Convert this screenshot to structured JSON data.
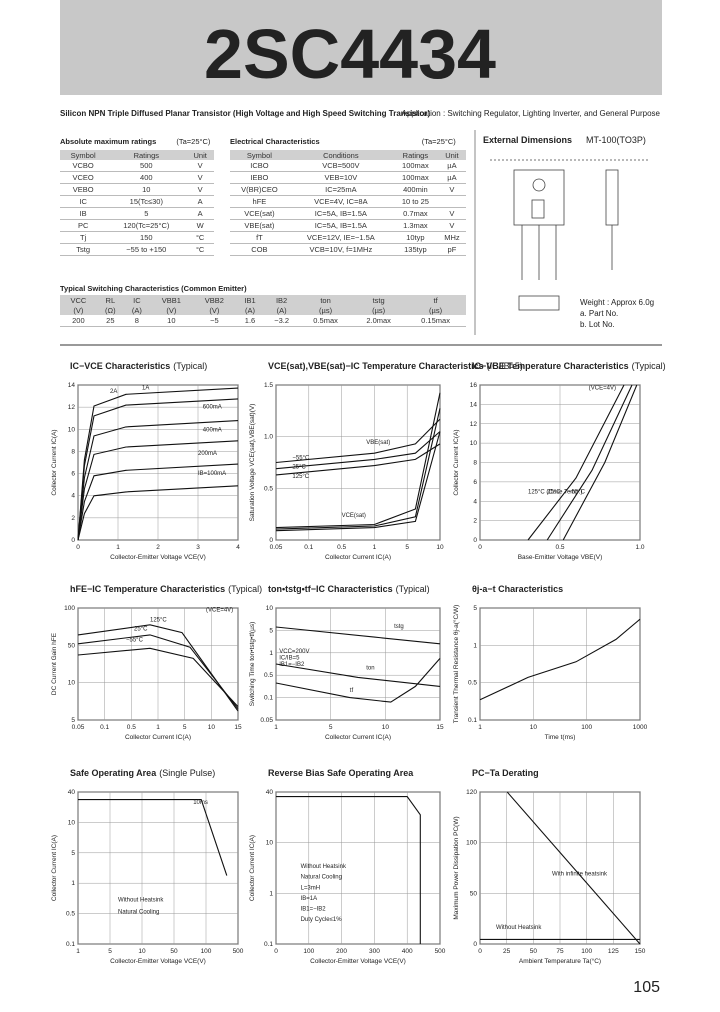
{
  "header": {
    "title": "2SC4434"
  },
  "description": "Silicon NPN Triple Diffused Planar Transistor (High Voltage and High Speed Switching Transistor)",
  "application": "Application : Switching Regulator, Lighting Inverter, and General Purpose",
  "abs_max": {
    "title": "Absolute maximum ratings",
    "condition": "(Ta=25°C)",
    "columns": [
      "Symbol",
      "Ratings",
      "Unit"
    ],
    "rows": [
      [
        "VCBO",
        "500",
        "V"
      ],
      [
        "VCEO",
        "400",
        "V"
      ],
      [
        "VEBO",
        "10",
        "V"
      ],
      [
        "IC",
        "15(Tc≤30)",
        "A"
      ],
      [
        "IB",
        "5",
        "A"
      ],
      [
        "PC",
        "120(Tc=25°C)",
        "W"
      ],
      [
        "Tj",
        "150",
        "°C"
      ],
      [
        "Tstg",
        "−55 to +150",
        "°C"
      ]
    ]
  },
  "elec": {
    "title": "Electrical Characteristics",
    "condition": "(Ta=25°C)",
    "columns": [
      "Symbol",
      "Conditions",
      "Ratings",
      "Unit"
    ],
    "rows": [
      [
        "ICBO",
        "VCB=500V",
        "100max",
        "µA"
      ],
      [
        "IEBO",
        "VEB=10V",
        "100max",
        "µA"
      ],
      [
        "V(BR)CEO",
        "IC=25mA",
        "400min",
        "V"
      ],
      [
        "hFE",
        "VCE=4V, IC=8A",
        "10 to 25"
      ],
      [
        "VCE(sat)",
        "IC=5A, IB=1.5A",
        "0.7max",
        "V"
      ],
      [
        "VBE(sat)",
        "IC=5A, IB=1.5A",
        "1.3max",
        "V"
      ],
      [
        "fT",
        "VCE=12V, IE=−1.5A",
        "10typ",
        "MHz"
      ],
      [
        "COB",
        "VCB=10V, f=1MHz",
        "135typ",
        "pF"
      ]
    ]
  },
  "switching": {
    "title": "Typical Switching Characteristics (Common Emitter)",
    "columns": [
      [
        "VCC",
        "(V)"
      ],
      [
        "RL",
        "(Ω)"
      ],
      [
        "IC",
        "(A)"
      ],
      [
        "VBB1",
        "(V)"
      ],
      [
        "VBB2",
        "(V)"
      ],
      [
        "IB1",
        "(A)"
      ],
      [
        "IB2",
        "(A)"
      ],
      [
        "ton",
        "(µs)"
      ],
      [
        "tstg",
        "(µs)"
      ],
      [
        "tf",
        "(µs)"
      ]
    ],
    "row": [
      "200",
      "25",
      "8",
      "10",
      "−5",
      "1.6",
      "−3.2",
      "0.5max",
      "2.0max",
      "0.15max"
    ]
  },
  "dimensions": {
    "title": "External Dimensions",
    "package": "MT-100(TO3P)",
    "notes": [
      "Weight : Approx 6.0g",
      "a. Part No.",
      "b. Lot No."
    ]
  },
  "charts": [
    {
      "title": "IC−VCE Characteristics",
      "qualifier": "(Typical)",
      "xlabel": "Collector-Emitter Voltage VCE(V)",
      "ylabel": "Collector Current IC(A)",
      "xticks": [
        "0",
        "1",
        "2",
        "3",
        "4"
      ],
      "yticks": [
        "0",
        "2",
        "4",
        "6",
        "8",
        "10",
        "12",
        "14"
      ],
      "labels": [
        "2A",
        "1A",
        "600mA",
        "400mA",
        "200mA",
        "IB=100mA"
      ]
    },
    {
      "title": "VCE(sat),VBE(sat)−IC Temperature Characteristics",
      "qualifier": "(IC/IB=5)",
      "xlabel": "Collector Current IC(A)",
      "ylabel": "Saturation Voltage VCE(sat),VBE(sat)(V)",
      "xticks": [
        "0.05",
        "0.1",
        "0.5",
        "1",
        "5",
        "10"
      ],
      "yticks": [
        "0",
        "0.5",
        "1.0",
        "1.5"
      ],
      "labels": [
        "VBE(sat)",
        "VCE(sat)",
        "−55°C",
        "25°C",
        "125°C"
      ]
    },
    {
      "title": "IC−VBE Temperature Characteristics",
      "qualifier": "(Typical)",
      "xlabel": "Base-Emitter Voltage VBE(V)",
      "ylabel": "Collector Current IC(A)",
      "xticks": [
        "0",
        "0.5",
        "1.0"
      ],
      "yticks": [
        "0",
        "2",
        "4",
        "6",
        "8",
        "10",
        "12",
        "14",
        "16"
      ],
      "labels": [
        "(VCE=4V)",
        "125°C (Case Temp.)",
        "25°C",
        "−55°C"
      ]
    },
    {
      "title": "hFE−IC Temperature Characteristics",
      "qualifier": "(Typical)",
      "xlabel": "Collector Current IC(A)",
      "ylabel": "DC Current Gain hFE",
      "xticks": [
        "0.05",
        "0.1",
        "0.5",
        "1",
        "5",
        "10",
        "15"
      ],
      "yticks": [
        "5",
        "10",
        "50",
        "100"
      ],
      "labels": [
        "(VCE=4V)",
        "125°C",
        "25°C",
        "−55°C"
      ]
    },
    {
      "title": "ton•tstg•tf−IC Characteristics",
      "qualifier": "(Typical)",
      "xlabel": "Collector Current IC(A)",
      "ylabel": "Switching Time ton•tstg•tf(µs)",
      "xticks": [
        "1",
        "5",
        "10",
        "15"
      ],
      "yticks": [
        "0.05",
        "0.1",
        "0.5",
        "1",
        "5",
        "10"
      ],
      "labels": [
        "VCC=200V",
        "IC/IB=5",
        "IB1=−IB2",
        "tstg",
        "ton",
        "tf"
      ]
    },
    {
      "title": "θj-a−t Characteristics",
      "xlabel": "Time t(ms)",
      "ylabel": "Transient Thermal Resistance θj-a(°C/W)",
      "xticks": [
        "1",
        "10",
        "100",
        "1000"
      ],
      "yticks": [
        "0.1",
        "0.5",
        "1",
        "5"
      ]
    },
    {
      "title": "Safe Operating Area",
      "qualifier": "(Single Pulse)",
      "xlabel": "Collector-Emitter Voltage VCE(V)",
      "ylabel": "Collector Current IC(A)",
      "xticks": [
        "1",
        "5",
        "10",
        "50",
        "100",
        "500"
      ],
      "yticks": [
        "0.1",
        "0.5",
        "1",
        "5",
        "10",
        "40"
      ],
      "labels": [
        "10ms",
        "Without Heatsink",
        "Natural Cooling"
      ]
    },
    {
      "title": "Reverse Bias Safe Operating Area",
      "xlabel": "Collector-Emitter Voltage VCE(V)",
      "ylabel": "Collector Current IC(A)",
      "xticks": [
        "0",
        "100",
        "200",
        "300",
        "400",
        "500"
      ],
      "yticks": [
        "0.1",
        "1",
        "10",
        "40"
      ],
      "labels": [
        "Without Heatsink",
        "Natural Cooling",
        "L=3mH",
        "IB=1A",
        "IB1=−IB2",
        "Duty Cycle≤1%"
      ]
    },
    {
      "title": "PC−Ta Derating",
      "xlabel": "Ambient Temperature Ta(°C)",
      "ylabel": "Maximum Power Dissipation PC(W)",
      "xticks": [
        "0",
        "25",
        "50",
        "75",
        "100",
        "125",
        "150"
      ],
      "yticks": [
        "0",
        "50",
        "100",
        "120"
      ],
      "labels": [
        "With infinite heatsink",
        "Without Heatsink"
      ]
    }
  ],
  "page_number": "105"
}
